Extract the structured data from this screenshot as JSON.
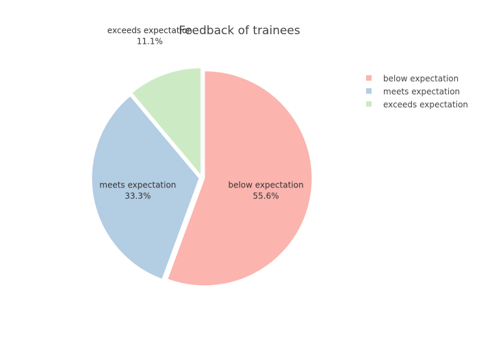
{
  "chart_data": {
    "type": "pie",
    "title": "Feedback of trainees",
    "slices": [
      {
        "label": "below expectation",
        "value": 55.6,
        "percent_label": "55.6%",
        "color": "#fbb4ae"
      },
      {
        "label": "meets expectation",
        "value": 33.3,
        "percent_label": "33.3%",
        "color": "#b3cde3"
      },
      {
        "label": "exceeds expectation",
        "value": 11.1,
        "percent_label": "11.1%",
        "color": "#ccebc5"
      }
    ],
    "legend_position": "top-right",
    "pulled_slices": true
  }
}
